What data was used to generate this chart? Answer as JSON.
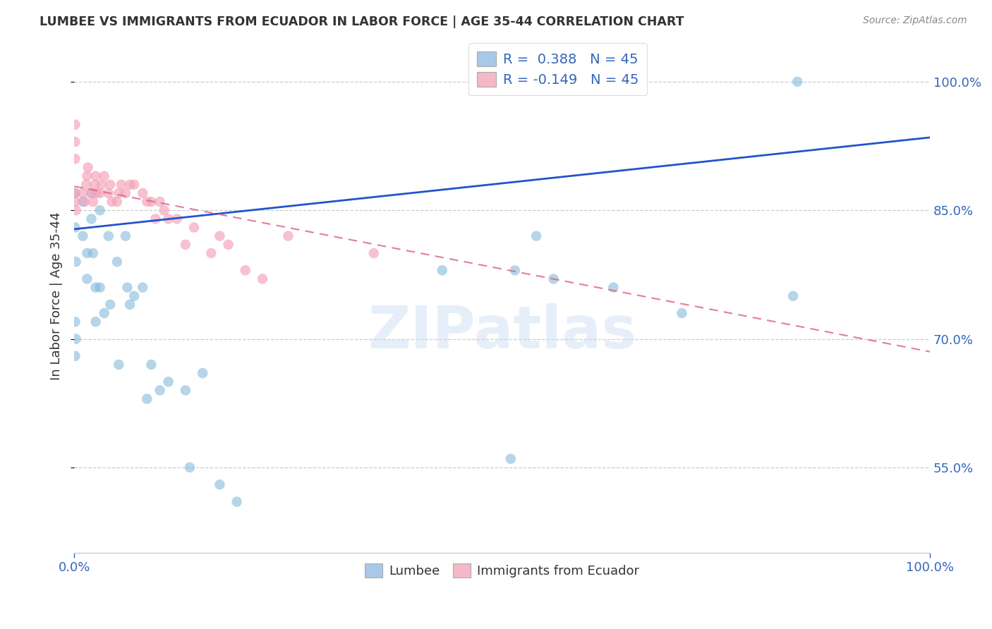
{
  "title": "LUMBEE VS IMMIGRANTS FROM ECUADOR IN LABOR FORCE | AGE 35-44 CORRELATION CHART",
  "source": "Source: ZipAtlas.com",
  "ylabel": "In Labor Force | Age 35-44",
  "xlim": [
    0.0,
    1.0
  ],
  "ylim": [
    0.45,
    1.05
  ],
  "ytick_values": [
    0.55,
    0.7,
    0.85,
    1.0
  ],
  "ytick_labels": [
    "55.0%",
    "70.0%",
    "85.0%",
    "100.0%"
  ],
  "legend_color1": "#a8c8e8",
  "legend_color2": "#f4b8c8",
  "watermark": "ZIPatlas",
  "blue_color": "#7ab4d8",
  "pink_color": "#f4a0b8",
  "line_blue": "#2255cc",
  "line_pink": "#dd6688",
  "blue_line_x": [
    0.0,
    1.0
  ],
  "blue_line_y": [
    0.828,
    0.935
  ],
  "pink_line_x": [
    0.0,
    1.0
  ],
  "pink_line_y": [
    0.878,
    0.685
  ],
  "lumbee_x": [
    0.001,
    0.001,
    0.001,
    0.001,
    0.002,
    0.002,
    0.01,
    0.01,
    0.015,
    0.015,
    0.02,
    0.02,
    0.022,
    0.025,
    0.025,
    0.03,
    0.03,
    0.035,
    0.04,
    0.042,
    0.05,
    0.052,
    0.06,
    0.062,
    0.065,
    0.07,
    0.08,
    0.085,
    0.09,
    0.1,
    0.11,
    0.13,
    0.135,
    0.15,
    0.17,
    0.19,
    0.43,
    0.51,
    0.515,
    0.54,
    0.56,
    0.63,
    0.71,
    0.84,
    0.845
  ],
  "lumbee_y": [
    0.87,
    0.83,
    0.72,
    0.68,
    0.79,
    0.7,
    0.86,
    0.82,
    0.8,
    0.77,
    0.87,
    0.84,
    0.8,
    0.76,
    0.72,
    0.85,
    0.76,
    0.73,
    0.82,
    0.74,
    0.79,
    0.67,
    0.82,
    0.76,
    0.74,
    0.75,
    0.76,
    0.63,
    0.67,
    0.64,
    0.65,
    0.64,
    0.55,
    0.66,
    0.53,
    0.51,
    0.78,
    0.56,
    0.78,
    0.82,
    0.77,
    0.76,
    0.73,
    0.75,
    1.0
  ],
  "ecuador_x": [
    0.001,
    0.001,
    0.001,
    0.001,
    0.001,
    0.002,
    0.01,
    0.012,
    0.014,
    0.015,
    0.016,
    0.02,
    0.022,
    0.024,
    0.025,
    0.026,
    0.03,
    0.032,
    0.035,
    0.04,
    0.042,
    0.044,
    0.05,
    0.052,
    0.055,
    0.06,
    0.065,
    0.07,
    0.08,
    0.085,
    0.09,
    0.095,
    0.1,
    0.105,
    0.11,
    0.12,
    0.13,
    0.14,
    0.16,
    0.17,
    0.18,
    0.2,
    0.22,
    0.25,
    0.35
  ],
  "ecuador_y": [
    0.87,
    0.91,
    0.93,
    0.95,
    0.86,
    0.85,
    0.87,
    0.86,
    0.88,
    0.89,
    0.9,
    0.87,
    0.86,
    0.88,
    0.89,
    0.87,
    0.87,
    0.88,
    0.89,
    0.87,
    0.88,
    0.86,
    0.86,
    0.87,
    0.88,
    0.87,
    0.88,
    0.88,
    0.87,
    0.86,
    0.86,
    0.84,
    0.86,
    0.85,
    0.84,
    0.84,
    0.81,
    0.83,
    0.8,
    0.82,
    0.81,
    0.78,
    0.77,
    0.82,
    0.8
  ]
}
